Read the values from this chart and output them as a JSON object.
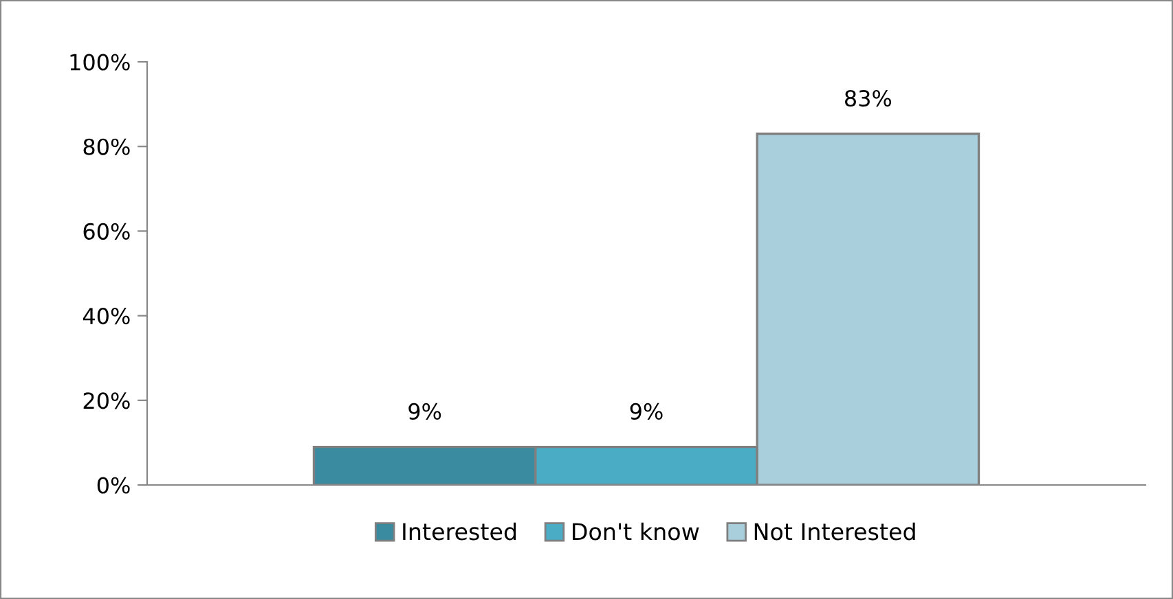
{
  "chart_data": {
    "type": "bar",
    "categories": [
      null
    ],
    "series": [
      {
        "name": "Interested",
        "color": "#3a8ba0",
        "values": [
          9
        ],
        "value_labels": [
          "9%"
        ]
      },
      {
        "name": "Don't know",
        "color": "#4bacc6",
        "values": [
          9
        ],
        "value_labels": [
          "9%"
        ]
      },
      {
        "name": "Not Interested",
        "color": "#a9cfdc",
        "values": [
          83
        ],
        "value_labels": [
          "83%"
        ]
      }
    ],
    "ylim": [
      0,
      100
    ],
    "yticks": [
      {
        "value": 0,
        "label": "0%"
      },
      {
        "value": 20,
        "label": "20%"
      },
      {
        "value": 40,
        "label": "40%"
      },
      {
        "value": 60,
        "label": "60%"
      },
      {
        "value": 80,
        "label": "80%"
      },
      {
        "value": 100,
        "label": "100%"
      }
    ],
    "grid": false,
    "legend": "bottom"
  }
}
